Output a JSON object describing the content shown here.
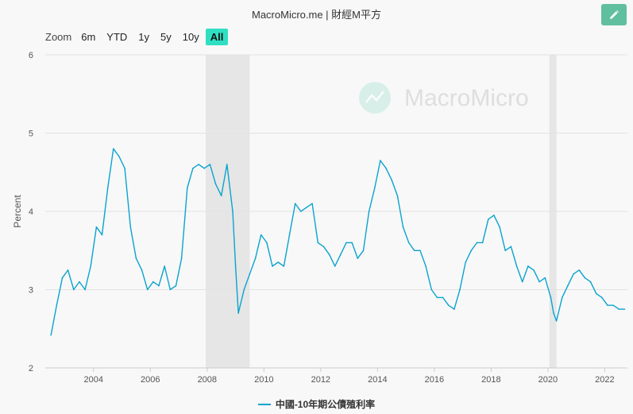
{
  "header": {
    "source": "MacroMicro.me | 財經M平方"
  },
  "toolbar": {
    "edit_icon": "pencil-icon"
  },
  "zoom": {
    "label": "Zoom",
    "options": [
      "6m",
      "YTD",
      "1y",
      "5y",
      "10y",
      "All"
    ],
    "selected": "All"
  },
  "watermark": {
    "text": "MacroMicro",
    "icon": "macromicro-logo-icon"
  },
  "colors": {
    "line": "#0aa3cf",
    "recession": "#e6e6e6",
    "accent": "#2fdfc3",
    "edit": "#5fbf9f"
  },
  "chart_data": {
    "type": "line",
    "title": "",
    "ylabel": "Percent",
    "xlabel": "",
    "ylim": [
      2,
      6
    ],
    "yticks": [
      "2",
      "3",
      "4",
      "5",
      "6"
    ],
    "xlim": [
      2002.3,
      2022.8
    ],
    "xticks": [
      "2004",
      "2006",
      "2008",
      "2010",
      "2012",
      "2014",
      "2016",
      "2018",
      "2020",
      "2022"
    ],
    "grid": true,
    "legend": "bottom",
    "shaded_periods": [
      [
        2007.95,
        2009.5
      ],
      [
        2020.05,
        2020.3
      ]
    ],
    "series": [
      {
        "name": "中國-10年期公債殖利率",
        "x": [
          2002.5,
          2002.7,
          2002.9,
          2003.1,
          2003.3,
          2003.5,
          2003.7,
          2003.9,
          2004.1,
          2004.3,
          2004.5,
          2004.7,
          2004.9,
          2005.1,
          2005.3,
          2005.5,
          2005.7,
          2005.9,
          2006.1,
          2006.3,
          2006.5,
          2006.7,
          2006.9,
          2007.1,
          2007.3,
          2007.5,
          2007.7,
          2007.9,
          2008.1,
          2008.3,
          2008.5,
          2008.7,
          2008.9,
          2009.0,
          2009.1,
          2009.3,
          2009.5,
          2009.7,
          2009.9,
          2010.1,
          2010.3,
          2010.5,
          2010.7,
          2010.9,
          2011.1,
          2011.3,
          2011.5,
          2011.7,
          2011.9,
          2012.1,
          2012.3,
          2012.5,
          2012.7,
          2012.9,
          2013.1,
          2013.3,
          2013.5,
          2013.7,
          2013.9,
          2014.1,
          2014.3,
          2014.5,
          2014.7,
          2014.9,
          2015.1,
          2015.3,
          2015.5,
          2015.7,
          2015.9,
          2016.1,
          2016.3,
          2016.5,
          2016.7,
          2016.9,
          2017.1,
          2017.3,
          2017.5,
          2017.7,
          2017.9,
          2018.1,
          2018.3,
          2018.5,
          2018.7,
          2018.9,
          2019.1,
          2019.3,
          2019.5,
          2019.7,
          2019.9,
          2020.1,
          2020.2,
          2020.3,
          2020.5,
          2020.7,
          2020.9,
          2021.1,
          2021.3,
          2021.5,
          2021.7,
          2021.9,
          2022.1,
          2022.3,
          2022.5,
          2022.7
        ],
        "values": [
          2.42,
          2.8,
          3.15,
          3.25,
          3.0,
          3.1,
          3.0,
          3.3,
          3.8,
          3.7,
          4.3,
          4.8,
          4.7,
          4.55,
          3.8,
          3.4,
          3.25,
          3.0,
          3.1,
          3.05,
          3.3,
          3.0,
          3.05,
          3.4,
          4.3,
          4.55,
          4.6,
          4.55,
          4.6,
          4.35,
          4.2,
          4.6,
          4.0,
          3.3,
          2.7,
          3.0,
          3.2,
          3.4,
          3.7,
          3.6,
          3.3,
          3.35,
          3.3,
          3.7,
          4.1,
          4.0,
          4.05,
          4.1,
          3.6,
          3.55,
          3.45,
          3.3,
          3.45,
          3.6,
          3.6,
          3.4,
          3.5,
          4.0,
          4.3,
          4.65,
          4.55,
          4.4,
          4.2,
          3.8,
          3.6,
          3.5,
          3.5,
          3.3,
          3.0,
          2.9,
          2.9,
          2.8,
          2.75,
          3.0,
          3.35,
          3.5,
          3.6,
          3.6,
          3.9,
          3.95,
          3.8,
          3.5,
          3.55,
          3.3,
          3.1,
          3.3,
          3.25,
          3.1,
          3.15,
          2.9,
          2.7,
          2.6,
          2.9,
          3.05,
          3.2,
          3.25,
          3.15,
          3.1,
          2.95,
          2.9,
          2.8,
          2.8,
          2.75,
          2.75
        ]
      }
    ]
  }
}
